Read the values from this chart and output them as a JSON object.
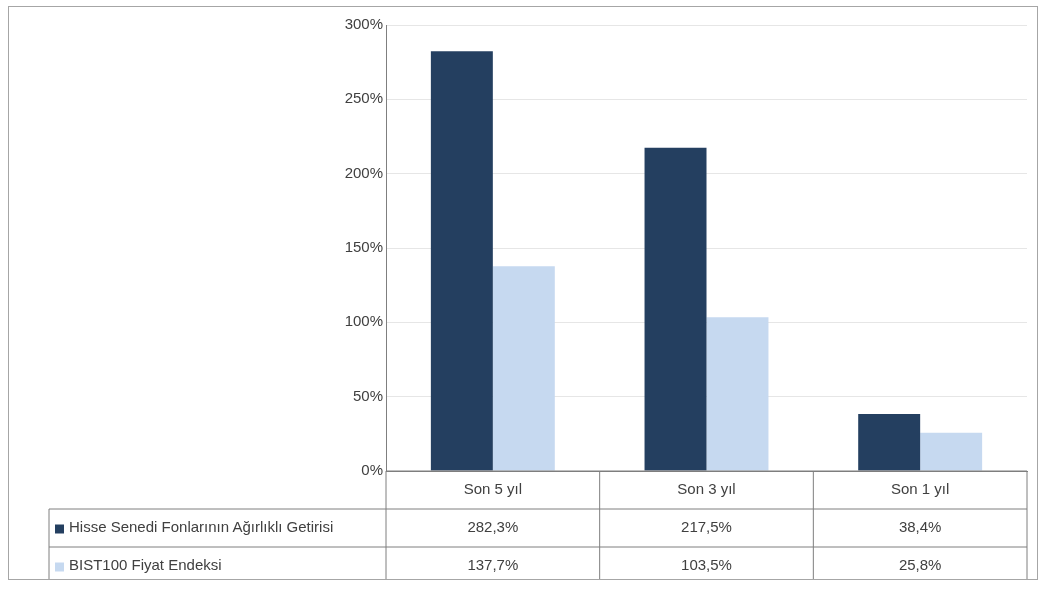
{
  "chart_data": {
    "type": "bar",
    "categories": [
      "Son 5 yıl",
      "Son 3 yıl",
      "Son 1 yıl"
    ],
    "series": [
      {
        "name": "Hisse Senedi Fonlarının Ağırlıklı Getirisi",
        "color": "#243f60",
        "values": [
          282.3,
          217.5,
          38.4
        ],
        "value_labels": [
          "282,3%",
          "217,5%",
          "38,4%"
        ]
      },
      {
        "name": "BIST100 Fiyat Endeksi",
        "color": "#c6d9f0",
        "values": [
          137.7,
          103.5,
          25.8
        ],
        "value_labels": [
          "137,7%",
          "103,5%",
          "25,8%"
        ]
      }
    ],
    "ylim": [
      0,
      300
    ],
    "yticks": [
      {
        "value": 0,
        "label": "0%"
      },
      {
        "value": 50,
        "label": "50%"
      },
      {
        "value": 100,
        "label": "100%"
      },
      {
        "value": 150,
        "label": "150%"
      },
      {
        "value": 200,
        "label": "200%"
      },
      {
        "value": 250,
        "label": "250%"
      },
      {
        "value": 300,
        "label": "300%"
      }
    ],
    "grid": "y",
    "legend": "bottom"
  }
}
